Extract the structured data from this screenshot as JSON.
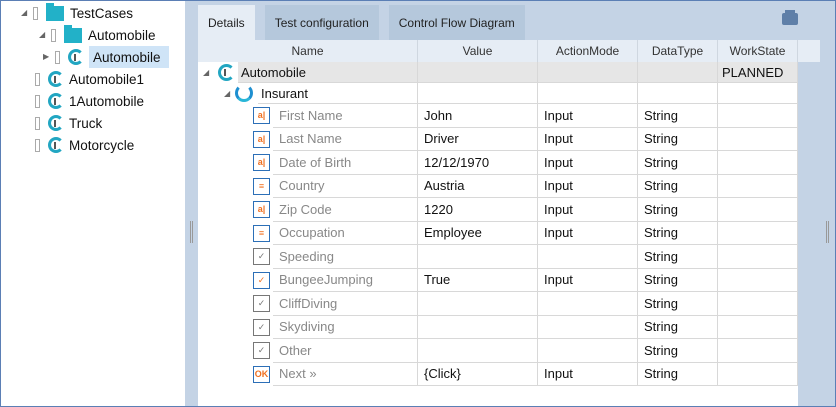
{
  "tree": [
    {
      "label": "TestCases",
      "type": "folder",
      "expanded": true,
      "level": 0
    },
    {
      "label": "Automobile",
      "type": "folder",
      "expanded": true,
      "level": 1
    },
    {
      "label": "Automobile",
      "type": "testcase",
      "collapsed": true,
      "level": 2,
      "selected": true
    },
    {
      "label": "Automobile1",
      "type": "testcase",
      "level": 1
    },
    {
      "label": "1Automobile",
      "type": "testcase",
      "level": 1
    },
    {
      "label": "Truck",
      "type": "testcase",
      "level": 1
    },
    {
      "label": "Motorcycle",
      "type": "testcase",
      "level": 1
    }
  ],
  "tabs": [
    {
      "label": "Details",
      "active": true
    },
    {
      "label": "Test configuration"
    },
    {
      "label": "Control Flow Diagram"
    }
  ],
  "columns": [
    "Name",
    "Value",
    "ActionMode",
    "DataType",
    "WorkState"
  ],
  "root": {
    "name": "Automobile",
    "workstate": "PLANNED"
  },
  "group": {
    "name": "Insurant"
  },
  "rows": [
    {
      "icon": "textbox-icon",
      "name": "First Name",
      "value": "John",
      "mode": "Input",
      "type": "String"
    },
    {
      "icon": "textbox-icon",
      "name": "Last Name",
      "value": "Driver",
      "mode": "Input",
      "type": "String"
    },
    {
      "icon": "textbox-icon",
      "name": "Date of Birth",
      "value": "12/12/1970",
      "mode": "Input",
      "type": "String"
    },
    {
      "icon": "combobox-icon",
      "name": "Country",
      "value": "Austria",
      "mode": "Input",
      "type": "String"
    },
    {
      "icon": "textbox-icon",
      "name": "Zip Code",
      "value": "1220",
      "mode": "Input",
      "type": "String"
    },
    {
      "icon": "combobox-icon",
      "name": "Occupation",
      "value": "Employee",
      "mode": "Input",
      "type": "String"
    },
    {
      "icon": "checkbox-icon",
      "name": "Speeding",
      "value": "",
      "mode": "",
      "type": "String"
    },
    {
      "icon": "checkbox-checked-icon",
      "name": "BungeeJumping",
      "value": "True",
      "mode": "Input",
      "type": "String"
    },
    {
      "icon": "checkbox-icon",
      "name": "CliffDiving",
      "value": "",
      "mode": "",
      "type": "String"
    },
    {
      "icon": "checkbox-icon",
      "name": "Skydiving",
      "value": "",
      "mode": "",
      "type": "String"
    },
    {
      "icon": "checkbox-icon",
      "name": "Other",
      "value": "",
      "mode": "",
      "type": "String"
    },
    {
      "icon": "button-icon",
      "name": "Next »",
      "value": "{Click}",
      "mode": "Input",
      "type": "String"
    }
  ],
  "colors": {
    "accent": "#22b1c8",
    "icon_orange": "#f07020",
    "panel": "#c4d3e5"
  }
}
